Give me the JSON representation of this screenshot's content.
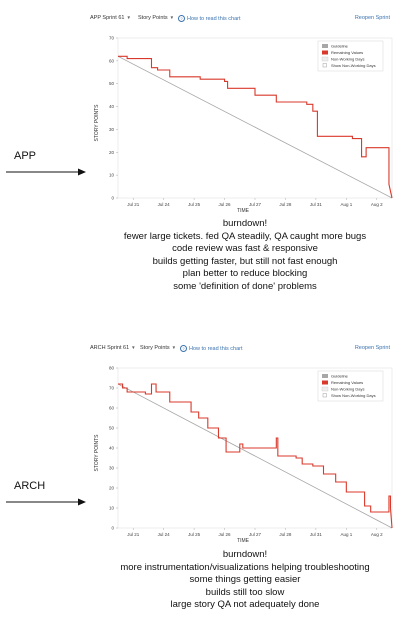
{
  "panels": [
    {
      "id": "app",
      "arrow_label": "APP",
      "toolbar": {
        "sprint_selector": "APP Sprint 61",
        "metric_selector": "Story Points",
        "help_link": "How to read this chart",
        "reopen_link": "Reopen Sprint"
      },
      "chart": {
        "ylabel": "STORY POINTS",
        "xlabel": "TIME",
        "x_ticks": [
          "Jul 21",
          "Jul 24",
          "Jul 25",
          "Jul 26",
          "Jul 27",
          "Jul 28",
          "Jul 31",
          "Aug 1",
          "Aug 2"
        ],
        "y_ticks": [
          0,
          10,
          20,
          30,
          40,
          50,
          60,
          70
        ],
        "legend": {
          "guideline": "Guideline",
          "remaining": "Remaining Values",
          "nonworking": "Non-Working Days",
          "show_nonworking": "Show Non-Working Days"
        }
      },
      "notes": [
        "burndown!",
        "fewer large tickets. fed QA steadily, QA caught more bugs",
        "code review was fast & responsive",
        "builds getting faster, but still not fast enough",
        "plan better to reduce blocking",
        "some 'definition of done' problems"
      ]
    },
    {
      "id": "arch",
      "arrow_label": "ARCH",
      "toolbar": {
        "sprint_selector": "ARCH Sprint 61",
        "metric_selector": "Story Points",
        "help_link": "How to read this chart",
        "reopen_link": "Reopen Sprint"
      },
      "chart": {
        "ylabel": "STORY POINTS",
        "xlabel": "TIME",
        "x_ticks": [
          "Jul 21",
          "Jul 24",
          "Jul 25",
          "Jul 26",
          "Jul 27",
          "Jul 28",
          "Jul 31",
          "Aug 1",
          "Aug 2"
        ],
        "y_ticks": [
          0,
          10,
          20,
          30,
          40,
          50,
          60,
          70,
          80
        ],
        "legend": {
          "guideline": "Guideline",
          "remaining": "Remaining Values",
          "nonworking": "Non-Working Days",
          "show_nonworking": "Show Non-Working Days"
        }
      },
      "notes": [
        "burndown!",
        "more instrumentation/visualizations helping troubleshooting",
        "some things getting easier",
        "builds still too slow",
        "large story QA not adequately done"
      ]
    }
  ],
  "colors": {
    "remaining": "#d9392b",
    "guideline": "#a7a7a7",
    "link": "#3b73af"
  },
  "chart_data": [
    {
      "type": "line",
      "title": "",
      "xlabel": "TIME",
      "ylabel": "STORY POINTS",
      "ylim": [
        0,
        70
      ],
      "xlim": [
        0,
        9
      ],
      "x_note": "x in days from sprint start; ticks Jul 21 .. Aug 2",
      "series": [
        {
          "name": "Guideline",
          "points": [
            [
              0,
              62
            ],
            [
              9,
              0
            ]
          ]
        },
        {
          "name": "Remaining Values",
          "points": [
            [
              0,
              62
            ],
            [
              0.3,
              62
            ],
            [
              0.3,
              61
            ],
            [
              1.1,
              61
            ],
            [
              1.1,
              57
            ],
            [
              1.3,
              57
            ],
            [
              1.3,
              56
            ],
            [
              1.7,
              56
            ],
            [
              1.7,
              53
            ],
            [
              2.7,
              53
            ],
            [
              2.7,
              52
            ],
            [
              3.5,
              52
            ],
            [
              3.5,
              51
            ],
            [
              3.6,
              51
            ],
            [
              3.6,
              48
            ],
            [
              4.5,
              48
            ],
            [
              4.5,
              45
            ],
            [
              5.2,
              45
            ],
            [
              5.2,
              42
            ],
            [
              6.2,
              42
            ],
            [
              6.2,
              41
            ],
            [
              6.4,
              41
            ],
            [
              6.4,
              38
            ],
            [
              6.55,
              38
            ],
            [
              6.55,
              27
            ],
            [
              7.7,
              27
            ],
            [
              7.7,
              26
            ],
            [
              8.0,
              26
            ],
            [
              8.0,
              18
            ],
            [
              8.15,
              18
            ],
            [
              8.15,
              22
            ],
            [
              8.9,
              22
            ],
            [
              8.9,
              6
            ],
            [
              9.0,
              0
            ]
          ]
        }
      ]
    },
    {
      "type": "line",
      "title": "",
      "xlabel": "TIME",
      "ylabel": "STORY POINTS",
      "ylim": [
        0,
        80
      ],
      "xlim": [
        0,
        9
      ],
      "x_note": "x in days from sprint start; ticks Jul 21 .. Aug 2",
      "series": [
        {
          "name": "Guideline",
          "points": [
            [
              0,
              72
            ],
            [
              9,
              0
            ]
          ]
        },
        {
          "name": "Remaining Values",
          "points": [
            [
              0,
              72
            ],
            [
              0.15,
              72
            ],
            [
              0.15,
              70
            ],
            [
              0.3,
              70
            ],
            [
              0.3,
              68
            ],
            [
              0.9,
              68
            ],
            [
              0.9,
              67
            ],
            [
              1.1,
              67
            ],
            [
              1.1,
              72
            ],
            [
              1.25,
              72
            ],
            [
              1.25,
              68
            ],
            [
              1.7,
              68
            ],
            [
              1.7,
              63
            ],
            [
              2.4,
              63
            ],
            [
              2.4,
              58
            ],
            [
              2.65,
              58
            ],
            [
              2.65,
              55
            ],
            [
              2.95,
              55
            ],
            [
              2.95,
              50
            ],
            [
              3.3,
              50
            ],
            [
              3.3,
              45
            ],
            [
              3.55,
              45
            ],
            [
              3.55,
              38
            ],
            [
              4.0,
              38
            ],
            [
              4.0,
              42
            ],
            [
              4.1,
              42
            ],
            [
              4.1,
              40
            ],
            [
              5.2,
              40
            ],
            [
              5.2,
              45
            ],
            [
              5.25,
              45
            ],
            [
              5.25,
              36
            ],
            [
              5.85,
              36
            ],
            [
              5.85,
              35
            ],
            [
              6.05,
              35
            ],
            [
              6.05,
              32
            ],
            [
              6.4,
              32
            ],
            [
              6.4,
              31
            ],
            [
              6.75,
              31
            ],
            [
              6.75,
              27
            ],
            [
              7.15,
              27
            ],
            [
              7.15,
              23
            ],
            [
              7.5,
              23
            ],
            [
              7.5,
              18
            ],
            [
              8.1,
              18
            ],
            [
              8.1,
              11
            ],
            [
              8.3,
              11
            ],
            [
              8.3,
              8
            ],
            [
              8.9,
              8
            ],
            [
              8.9,
              16
            ],
            [
              8.95,
              16
            ],
            [
              8.95,
              10
            ],
            [
              9.0,
              0
            ]
          ]
        }
      ]
    }
  ]
}
